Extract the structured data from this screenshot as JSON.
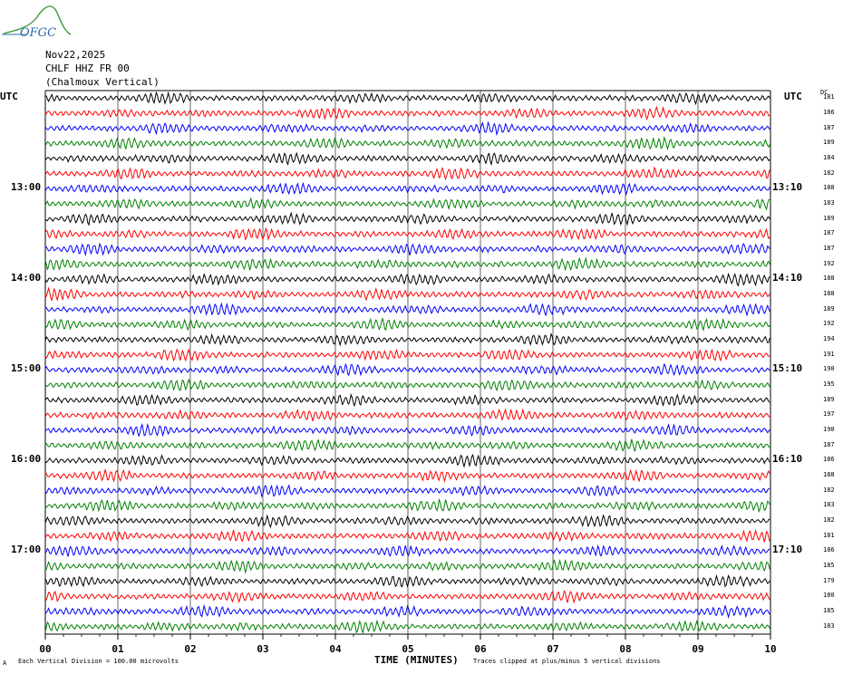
{
  "logo": {
    "text": "OFGC"
  },
  "header": {
    "date": "Nov22,2025",
    "station": "CHLF HHZ FR 00",
    "location": "(Chalmoux Vertical)",
    "utc_left": "UTC",
    "utc_right": "UTC",
    "dc_label": "DC"
  },
  "footer": {
    "scale_note": "Each Vertical Division =  100.00 microvolts",
    "xaxis_title": "TIME (MINUTES)",
    "clip_note": "Traces clipped at plus/minus 5 vertical divisions",
    "corner_mark": "A"
  },
  "colors": {
    "black": "#000000",
    "red": "#ff0000",
    "blue": "#0000ff",
    "green": "#008000",
    "grid": "#000000"
  },
  "chart_data": {
    "type": "line",
    "title": "Nov22,2025 CHLF HHZ FR 00 (Chalmoux Vertical)",
    "xlabel": "TIME (MINUTES)",
    "x_ticks": [
      "00",
      "01",
      "02",
      "03",
      "04",
      "05",
      "06",
      "07",
      "08",
      "09",
      "10"
    ],
    "xlim": [
      0,
      10
    ],
    "grid": true,
    "trace_color_cycle": [
      "black",
      "red",
      "blue",
      "green"
    ],
    "left_time_labels": [
      {
        "row": 6,
        "text": "13:00"
      },
      {
        "row": 12,
        "text": "14:00"
      },
      {
        "row": 18,
        "text": "15:00"
      },
      {
        "row": 24,
        "text": "16:00"
      },
      {
        "row": 30,
        "text": "17:00"
      }
    ],
    "right_time_labels": [
      {
        "row": 6,
        "text": "13:10"
      },
      {
        "row": 12,
        "text": "14:10"
      },
      {
        "row": 18,
        "text": "15:10"
      },
      {
        "row": 24,
        "text": "16:10"
      },
      {
        "row": 30,
        "text": "17:10"
      }
    ],
    "dc_offsets": [
      181,
      186,
      187,
      189,
      184,
      182,
      188,
      183,
      189,
      187,
      187,
      192,
      188,
      188,
      189,
      192,
      194,
      191,
      190,
      195,
      189,
      197,
      190,
      187,
      186,
      188,
      182,
      183,
      182,
      181,
      186,
      185,
      179,
      180,
      185,
      183
    ]
  }
}
